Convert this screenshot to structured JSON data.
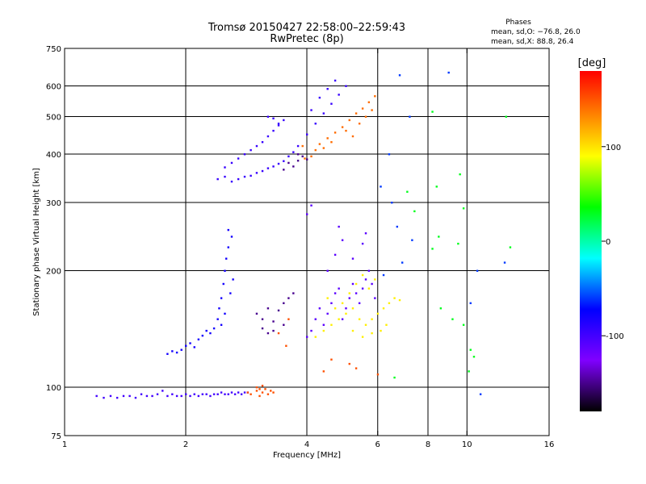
{
  "chart_data": {
    "type": "scatter",
    "title": "Tromsø 20150427 22:58:00–22:59:43",
    "subtitle": "RwPretec (8p)",
    "stats": {
      "heading": "Phases",
      "line1": "mean, sd,O: −76.8, 26.0",
      "line2": "mean, sd,X:  88.8, 26.4"
    },
    "xlabel": "Frequency [MHz]",
    "ylabel": "Stationary phase Virtual Height [km]",
    "x_scale": "log",
    "y_scale": "log",
    "xlim": [
      1,
      16
    ],
    "ylim": [
      75,
      750
    ],
    "x_ticks": [
      1,
      2,
      4,
      6,
      8,
      10,
      16
    ],
    "y_ticks": [
      75,
      100,
      200,
      300,
      400,
      500,
      600,
      750
    ],
    "x_grid": [
      2,
      4,
      6,
      8,
      10
    ],
    "y_grid": [
      100,
      200,
      300,
      400,
      500,
      600
    ],
    "colorbar": {
      "label": "[deg]",
      "range": [
        -180,
        180
      ],
      "ticks": [
        100,
        0,
        -100
      ]
    },
    "series": [
      {
        "color_phase": -100,
        "points": [
          [
            1.2,
            95
          ],
          [
            1.25,
            94
          ],
          [
            1.3,
            95
          ],
          [
            1.35,
            94
          ],
          [
            1.4,
            95
          ],
          [
            1.45,
            95
          ],
          [
            1.5,
            94
          ],
          [
            1.55,
            96
          ],
          [
            1.6,
            95
          ],
          [
            1.65,
            95
          ],
          [
            1.7,
            96
          ],
          [
            1.75,
            98
          ],
          [
            1.8,
            95
          ],
          [
            1.85,
            96
          ],
          [
            1.9,
            95
          ],
          [
            1.95,
            95
          ],
          [
            2.0,
            96
          ],
          [
            2.05,
            95
          ],
          [
            2.1,
            96
          ],
          [
            2.15,
            95
          ],
          [
            2.2,
            96
          ],
          [
            2.25,
            96
          ],
          [
            2.3,
            95
          ],
          [
            2.35,
            96
          ],
          [
            2.4,
            96
          ],
          [
            2.45,
            97
          ],
          [
            2.5,
            96
          ],
          [
            2.55,
            96
          ],
          [
            2.6,
            97
          ],
          [
            2.65,
            96
          ],
          [
            2.7,
            97
          ],
          [
            2.75,
            96
          ],
          [
            2.8,
            97
          ],
          [
            2.85,
            97
          ]
        ]
      },
      {
        "color_phase": -80,
        "points": [
          [
            1.8,
            122
          ],
          [
            1.85,
            124
          ],
          [
            1.9,
            123
          ],
          [
            1.95,
            125
          ],
          [
            2.0,
            128
          ],
          [
            2.05,
            130
          ],
          [
            2.1,
            127
          ],
          [
            2.15,
            133
          ],
          [
            2.2,
            136
          ],
          [
            2.25,
            140
          ],
          [
            2.3,
            138
          ],
          [
            2.35,
            142
          ],
          [
            2.4,
            150
          ],
          [
            2.45,
            145
          ],
          [
            2.5,
            155
          ],
          [
            2.42,
            160
          ],
          [
            2.45,
            170
          ],
          [
            2.48,
            185
          ],
          [
            2.5,
            200
          ],
          [
            2.52,
            215
          ],
          [
            2.55,
            230
          ],
          [
            2.6,
            245
          ],
          [
            2.55,
            255
          ],
          [
            2.58,
            175
          ],
          [
            2.62,
            190
          ]
        ]
      },
      {
        "color_phase": -95,
        "points": [
          [
            2.4,
            345
          ],
          [
            2.5,
            350
          ],
          [
            2.6,
            340
          ],
          [
            2.7,
            345
          ],
          [
            2.8,
            350
          ],
          [
            2.9,
            352
          ],
          [
            3.0,
            358
          ],
          [
            3.1,
            362
          ],
          [
            3.2,
            368
          ],
          [
            3.3,
            372
          ],
          [
            3.4,
            378
          ],
          [
            3.5,
            384
          ],
          [
            2.5,
            370
          ],
          [
            2.6,
            380
          ],
          [
            2.7,
            390
          ],
          [
            2.8,
            400
          ],
          [
            2.9,
            410
          ],
          [
            3.0,
            420
          ],
          [
            3.1,
            430
          ],
          [
            3.2,
            445
          ],
          [
            3.3,
            460
          ],
          [
            3.4,
            475
          ],
          [
            3.5,
            490
          ],
          [
            3.2,
            500
          ],
          [
            3.3,
            495
          ],
          [
            3.4,
            480
          ],
          [
            3.6,
            395
          ],
          [
            3.7,
            405
          ],
          [
            3.8,
            420
          ],
          [
            4.0,
            450
          ],
          [
            4.2,
            480
          ],
          [
            4.4,
            510
          ],
          [
            4.6,
            540
          ],
          [
            4.8,
            570
          ],
          [
            5.0,
            600
          ],
          [
            4.1,
            520
          ],
          [
            4.3,
            560
          ],
          [
            4.5,
            590
          ],
          [
            4.7,
            620
          ]
        ]
      },
      {
        "color_phase": -150,
        "points": [
          [
            3.6,
            380
          ],
          [
            3.7,
            372
          ],
          [
            3.8,
            385
          ],
          [
            3.9,
            395
          ],
          [
            4.0,
            388
          ],
          [
            3.5,
            365
          ],
          [
            3.8,
            400
          ],
          [
            3.0,
            155
          ],
          [
            3.1,
            150
          ],
          [
            3.2,
            160
          ],
          [
            3.3,
            148
          ],
          [
            3.4,
            158
          ],
          [
            3.5,
            165
          ],
          [
            3.6,
            170
          ],
          [
            3.3,
            140
          ],
          [
            3.5,
            145
          ],
          [
            3.7,
            175
          ],
          [
            3.1,
            142
          ],
          [
            3.2,
            138
          ]
        ]
      },
      {
        "color_phase": 140,
        "points": [
          [
            4.1,
            395
          ],
          [
            4.2,
            410
          ],
          [
            4.3,
            425
          ],
          [
            4.5,
            440
          ],
          [
            4.7,
            455
          ],
          [
            4.9,
            470
          ],
          [
            5.1,
            490
          ],
          [
            5.3,
            510
          ],
          [
            5.5,
            525
          ],
          [
            5.7,
            545
          ],
          [
            5.9,
            565
          ],
          [
            5.6,
            500
          ],
          [
            5.8,
            520
          ],
          [
            5.4,
            480
          ],
          [
            4.4,
            415
          ],
          [
            4.6,
            430
          ],
          [
            3.9,
            420
          ],
          [
            3.95,
            390
          ],
          [
            5.2,
            445
          ],
          [
            5.0,
            460
          ]
        ]
      },
      {
        "color_phase": -110,
        "points": [
          [
            4.0,
            135
          ],
          [
            4.1,
            140
          ],
          [
            4.2,
            150
          ],
          [
            4.3,
            160
          ],
          [
            4.4,
            145
          ],
          [
            4.5,
            155
          ],
          [
            4.6,
            165
          ],
          [
            4.7,
            175
          ],
          [
            4.8,
            180
          ],
          [
            4.9,
            150
          ],
          [
            5.0,
            160
          ],
          [
            5.1,
            170
          ],
          [
            5.2,
            185
          ],
          [
            5.3,
            175
          ],
          [
            5.4,
            165
          ],
          [
            5.5,
            180
          ],
          [
            5.6,
            190
          ],
          [
            5.7,
            200
          ],
          [
            5.8,
            185
          ],
          [
            5.9,
            170
          ],
          [
            4.5,
            200
          ],
          [
            4.7,
            220
          ],
          [
            4.9,
            240
          ],
          [
            5.2,
            215
          ],
          [
            5.5,
            235
          ],
          [
            4.0,
            280
          ],
          [
            4.1,
            295
          ],
          [
            4.8,
            260
          ],
          [
            5.6,
            250
          ]
        ]
      },
      {
        "color_phase": 95,
        "points": [
          [
            4.2,
            135
          ],
          [
            4.4,
            140
          ],
          [
            4.6,
            145
          ],
          [
            4.8,
            150
          ],
          [
            5.0,
            155
          ],
          [
            5.2,
            160
          ],
          [
            5.4,
            150
          ],
          [
            5.6,
            145
          ],
          [
            5.8,
            150
          ],
          [
            6.0,
            155
          ],
          [
            6.2,
            160
          ],
          [
            6.4,
            165
          ],
          [
            6.6,
            170
          ],
          [
            6.8,
            168
          ],
          [
            5.1,
            175
          ],
          [
            5.3,
            185
          ],
          [
            5.5,
            195
          ],
          [
            5.7,
            180
          ],
          [
            5.9,
            190
          ],
          [
            6.1,
            140
          ],
          [
            6.3,
            145
          ],
          [
            4.9,
            165
          ],
          [
            5.2,
            140
          ],
          [
            5.5,
            135
          ],
          [
            5.8,
            138
          ],
          [
            4.5,
            170
          ],
          [
            4.7,
            160
          ]
        ]
      },
      {
        "color_phase": 150,
        "points": [
          [
            2.85,
            97
          ],
          [
            2.9,
            96
          ],
          [
            3.0,
            98
          ],
          [
            3.05,
            95
          ],
          [
            3.1,
            97
          ],
          [
            3.15,
            99
          ],
          [
            3.2,
            96
          ],
          [
            3.25,
            98
          ],
          [
            3.3,
            97
          ],
          [
            3.0,
            100
          ],
          [
            3.1,
            101
          ],
          [
            3.05,
            99
          ],
          [
            3.6,
            150
          ],
          [
            3.4,
            138
          ],
          [
            3.55,
            128
          ],
          [
            4.6,
            118
          ],
          [
            5.1,
            115
          ],
          [
            4.4,
            110
          ],
          [
            5.3,
            112
          ],
          [
            6.0,
            108
          ]
        ]
      },
      {
        "color_phase": 30,
        "points": [
          [
            8.2,
            515
          ],
          [
            7.1,
            320
          ],
          [
            8.4,
            330
          ],
          [
            9.6,
            355
          ],
          [
            8.5,
            245
          ],
          [
            9.5,
            235
          ],
          [
            12.8,
            230
          ],
          [
            8.2,
            228
          ],
          [
            7.4,
            285
          ],
          [
            9.8,
            290
          ],
          [
            8.6,
            160
          ],
          [
            9.2,
            150
          ],
          [
            9.8,
            145
          ],
          [
            10.2,
            125
          ],
          [
            10.4,
            120
          ],
          [
            10.1,
            110
          ],
          [
            6.6,
            106
          ],
          [
            12.5,
            500
          ]
        ]
      },
      {
        "color_phase": -60,
        "points": [
          [
            6.8,
            640
          ],
          [
            7.2,
            500
          ],
          [
            6.4,
            400
          ],
          [
            6.5,
            300
          ],
          [
            6.7,
            260
          ],
          [
            7.3,
            240
          ],
          [
            6.9,
            210
          ],
          [
            9.0,
            650
          ],
          [
            12.4,
            210
          ],
          [
            10.6,
            200
          ],
          [
            10.2,
            165
          ],
          [
            10.8,
            96
          ],
          [
            6.2,
            195
          ],
          [
            6.1,
            330
          ]
        ]
      }
    ]
  }
}
